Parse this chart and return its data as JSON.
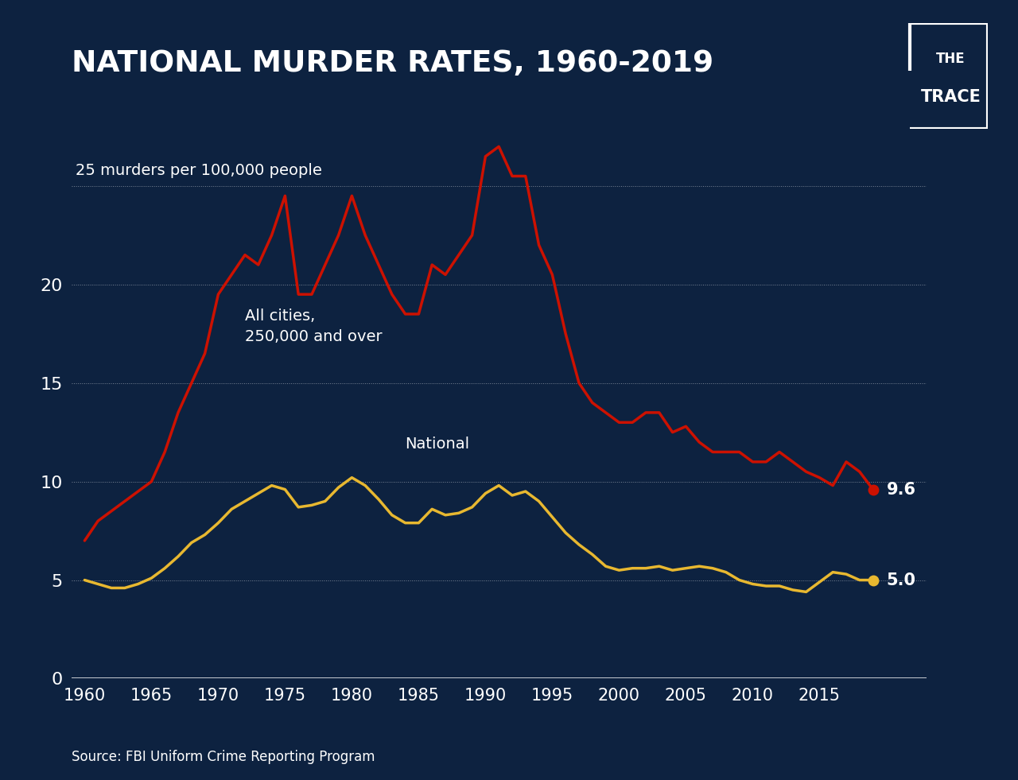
{
  "title": "NATIONAL MURDER RATES, 1960-2019",
  "ylabel_text": "25 murders per 100,000 people",
  "source": "Source: FBI Uniform Crime Reporting Program",
  "bg_color": "#0d2240",
  "text_color": "#ffffff",
  "grid_color": "#ffffff",
  "red_color": "#cc1100",
  "gold_color": "#e8b830",
  "ytick_values": [
    0,
    5,
    10,
    15,
    20
  ],
  "xticks": [
    1960,
    1965,
    1970,
    1975,
    1980,
    1985,
    1990,
    1995,
    2000,
    2005,
    2010,
    2015
  ],
  "grid_yticks": [
    5,
    10,
    15,
    20,
    25
  ],
  "cities_label": "All cities,\n250,000 and over",
  "national_label": "National",
  "cities_end_label": "9.6",
  "national_end_label": "5.0",
  "cities_data": {
    "years": [
      1960,
      1961,
      1962,
      1963,
      1964,
      1965,
      1966,
      1967,
      1968,
      1969,
      1970,
      1971,
      1972,
      1973,
      1974,
      1975,
      1976,
      1977,
      1978,
      1979,
      1980,
      1981,
      1982,
      1983,
      1984,
      1985,
      1986,
      1987,
      1988,
      1989,
      1990,
      1991,
      1992,
      1993,
      1994,
      1995,
      1996,
      1997,
      1998,
      1999,
      2000,
      2001,
      2002,
      2003,
      2004,
      2005,
      2006,
      2007,
      2008,
      2009,
      2010,
      2011,
      2012,
      2013,
      2014,
      2015,
      2016,
      2017,
      2018,
      2019
    ],
    "values": [
      7.0,
      8.0,
      8.5,
      9.0,
      9.5,
      10.0,
      11.5,
      13.5,
      15.0,
      16.5,
      19.5,
      20.5,
      21.5,
      21.0,
      22.5,
      24.5,
      19.5,
      19.5,
      21.0,
      22.5,
      24.5,
      22.5,
      21.0,
      19.5,
      18.5,
      18.5,
      21.0,
      20.5,
      21.5,
      22.5,
      26.5,
      27.0,
      25.5,
      25.5,
      22.0,
      20.5,
      17.5,
      15.0,
      14.0,
      13.5,
      13.0,
      13.0,
      13.5,
      13.5,
      12.5,
      12.8,
      12.0,
      11.5,
      11.5,
      11.5,
      11.0,
      11.0,
      11.5,
      11.0,
      10.5,
      10.2,
      9.8,
      11.0,
      10.5,
      9.6
    ]
  },
  "national_data": {
    "years": [
      1960,
      1961,
      1962,
      1963,
      1964,
      1965,
      1966,
      1967,
      1968,
      1969,
      1970,
      1971,
      1972,
      1973,
      1974,
      1975,
      1976,
      1977,
      1978,
      1979,
      1980,
      1981,
      1982,
      1983,
      1984,
      1985,
      1986,
      1987,
      1988,
      1989,
      1990,
      1991,
      1992,
      1993,
      1994,
      1995,
      1996,
      1997,
      1998,
      1999,
      2000,
      2001,
      2002,
      2003,
      2004,
      2005,
      2006,
      2007,
      2008,
      2009,
      2010,
      2011,
      2012,
      2013,
      2014,
      2015,
      2016,
      2017,
      2018,
      2019
    ],
    "values": [
      5.0,
      4.8,
      4.6,
      4.6,
      4.8,
      5.1,
      5.6,
      6.2,
      6.9,
      7.3,
      7.9,
      8.6,
      9.0,
      9.4,
      9.8,
      9.6,
      8.7,
      8.8,
      9.0,
      9.7,
      10.2,
      9.8,
      9.1,
      8.3,
      7.9,
      7.9,
      8.6,
      8.3,
      8.4,
      8.7,
      9.4,
      9.8,
      9.3,
      9.5,
      9.0,
      8.2,
      7.4,
      6.8,
      6.3,
      5.7,
      5.5,
      5.6,
      5.6,
      5.7,
      5.5,
      5.6,
      5.7,
      5.6,
      5.4,
      5.0,
      4.8,
      4.7,
      4.7,
      4.5,
      4.4,
      4.9,
      5.4,
      5.3,
      5.0,
      5.0
    ]
  }
}
